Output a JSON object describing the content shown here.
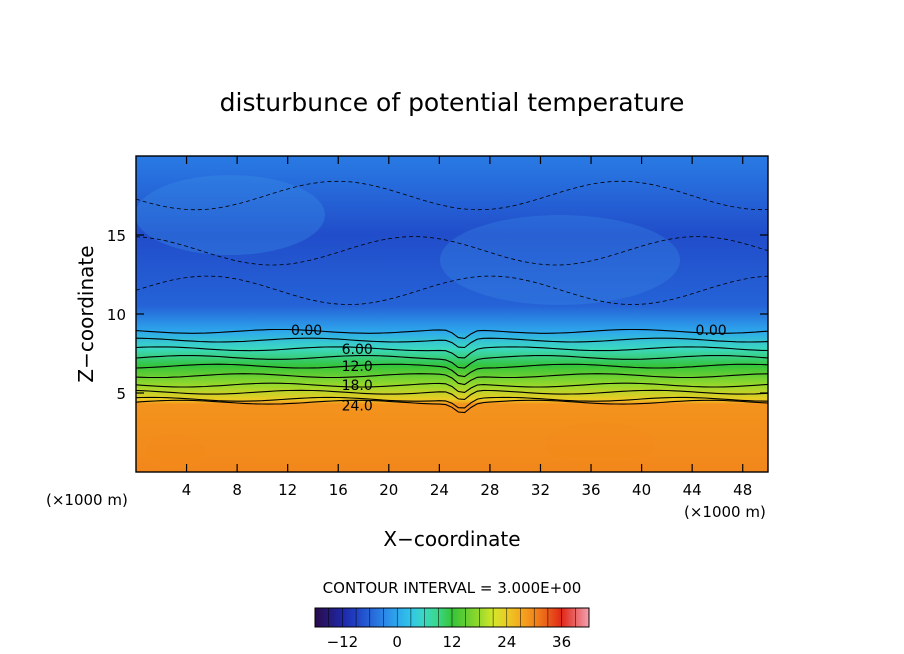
{
  "chart_data": {
    "type": "heatmap",
    "title": "disturbunce of potential temperature",
    "xlabel": "X−coordinate",
    "ylabel": "Z−coordinate",
    "x_unit_label": "(×1000 m)",
    "x_unit_label_right": "(×1000 m)",
    "xlim": [
      0,
      50
    ],
    "ylim": [
      0,
      20
    ],
    "x_ticks": [
      "4",
      "8",
      "12",
      "16",
      "20",
      "24",
      "28",
      "32",
      "36",
      "40",
      "44",
      "48"
    ],
    "y_ticks": [
      "5",
      "10",
      "15"
    ],
    "contour_interval_text": "CONTOUR INTERVAL = 3.000E+00",
    "contour_labels": [
      {
        "text": "0.00",
        "x": 13.5,
        "y": 9.0
      },
      {
        "text": "0.00",
        "x": 45.5,
        "y": 9.0
      },
      {
        "text": "6.00",
        "x": 17.5,
        "y": 7.8
      },
      {
        "text": "12.0",
        "x": 17.5,
        "y": 6.7
      },
      {
        "text": "18.0",
        "x": 17.5,
        "y": 5.5
      },
      {
        "text": "24.0",
        "x": 17.5,
        "y": 4.2
      }
    ],
    "vertical_profile": [
      {
        "z": 0.0,
        "theta": 30
      },
      {
        "z": 4.3,
        "theta": 29
      },
      {
        "z": 4.6,
        "theta": 24
      },
      {
        "z": 5.5,
        "theta": 18
      },
      {
        "z": 6.7,
        "theta": 12
      },
      {
        "z": 7.8,
        "theta": 6
      },
      {
        "z": 8.9,
        "theta": 0
      },
      {
        "z": 10.5,
        "theta": -6
      },
      {
        "z": 15.0,
        "theta": -8
      },
      {
        "z": 18.5,
        "theta": -5
      },
      {
        "z": 20.0,
        "theta": -4
      }
    ],
    "colorbar": {
      "min": -18,
      "max": 42,
      "ticks": [
        "−12",
        "0",
        "12",
        "24",
        "36"
      ],
      "tick_values": [
        -12,
        0,
        12,
        24,
        36
      ]
    },
    "colors": {
      "warm_layer": "#f6961f",
      "cool_layer": "#2fb7ef",
      "frame": "#000000"
    }
  }
}
